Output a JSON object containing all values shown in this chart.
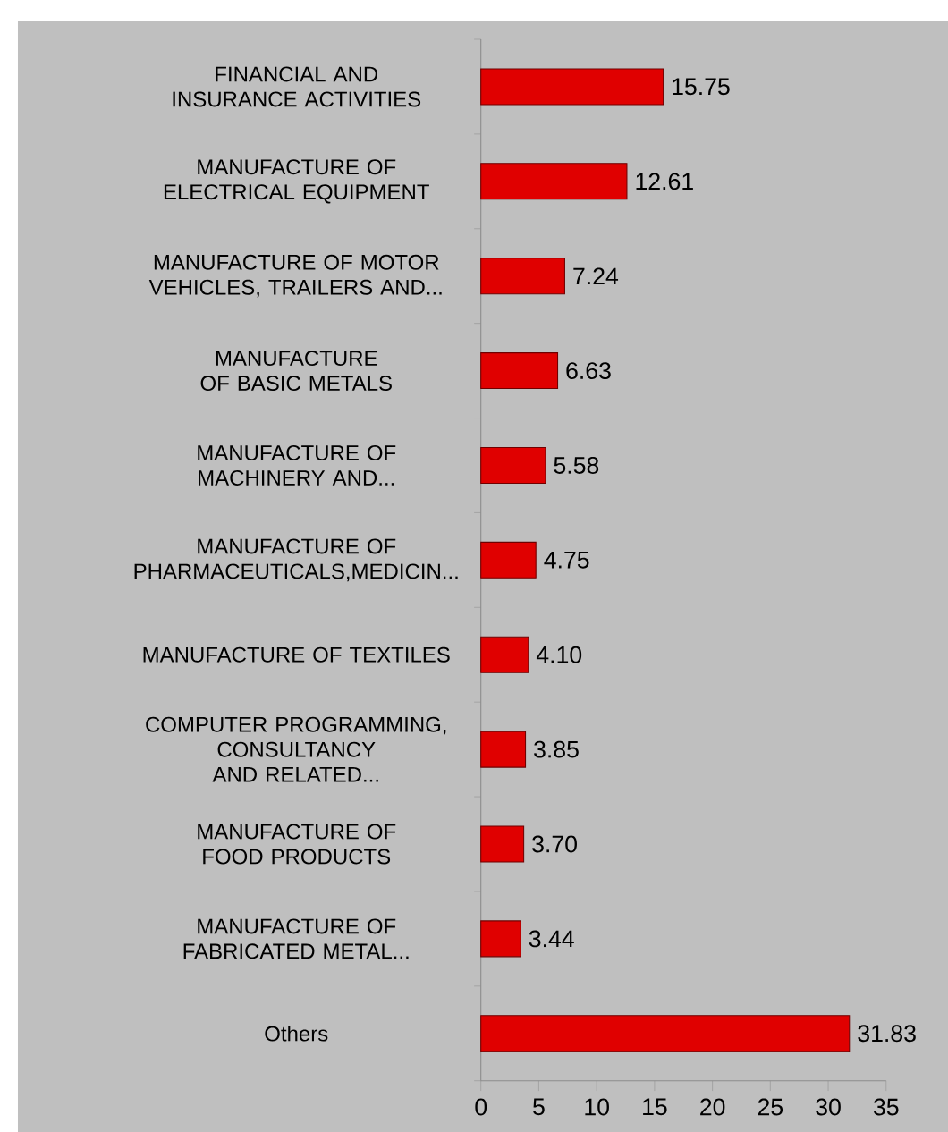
{
  "chart_data": {
    "type": "bar",
    "orientation": "horizontal",
    "categories": [
      "FINANCIAL AND INSURANCE ACTIVITIES",
      "MANUFACTURE OF ELECTRICAL EQUIPMENT",
      "MANUFACTURE OF MOTOR VEHICLES, TRAILERS AND...",
      "MANUFACTURE OF BASIC METALS",
      "MANUFACTURE OF MACHINERY AND...",
      "MANUFACTURE OF PHARMACEUTICALS,MEDICIN...",
      "MANUFACTURE OF TEXTILES",
      "COMPUTER PROGRAMMING, CONSULTANCY AND RELATED...",
      "MANUFACTURE OF FOOD PRODUCTS",
      "MANUFACTURE OF FABRICATED METAL...",
      "Others"
    ],
    "values": [
      15.75,
      12.61,
      7.24,
      6.63,
      5.58,
      4.75,
      4.1,
      3.85,
      3.7,
      3.44,
      31.83
    ],
    "value_labels": [
      "15.75",
      "12.61",
      "7.24",
      "6.63",
      "5.58",
      "4.75",
      "4.10",
      "3.85",
      "3.70",
      "3.44",
      "31.83"
    ],
    "color": "#e00000",
    "xlim": [
      0,
      35
    ],
    "xticks": [
      0,
      5,
      10,
      15,
      20,
      25,
      30,
      35
    ]
  }
}
